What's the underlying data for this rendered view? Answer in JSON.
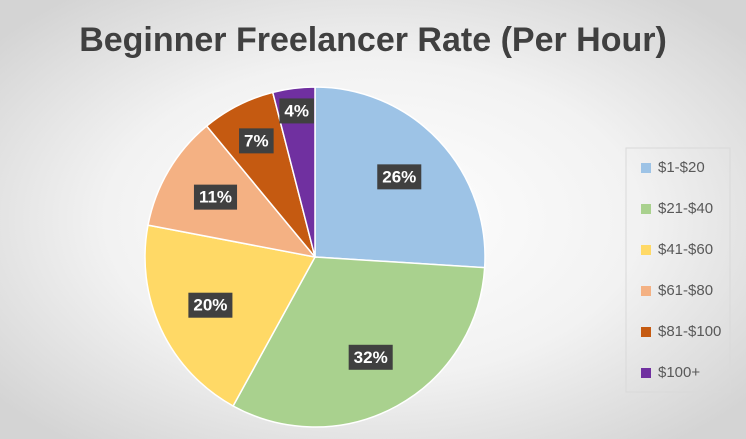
{
  "chart_data": {
    "type": "pie",
    "title": "Beginner Freelancer Rate (Per Hour)",
    "categories": [
      "$1-$20",
      "$21-$40",
      "$41-$60",
      "$61-$80",
      "$81-$100",
      "$100+"
    ],
    "values": [
      26,
      32,
      20,
      11,
      7,
      4
    ],
    "value_labels": [
      "26%",
      "32%",
      "20%",
      "11%",
      "7%",
      "4%"
    ],
    "colors": [
      "#9dc3e6",
      "#a9d18e",
      "#ffd966",
      "#f4b183",
      "#c55a11",
      "#7030a0"
    ],
    "legend": "right"
  }
}
